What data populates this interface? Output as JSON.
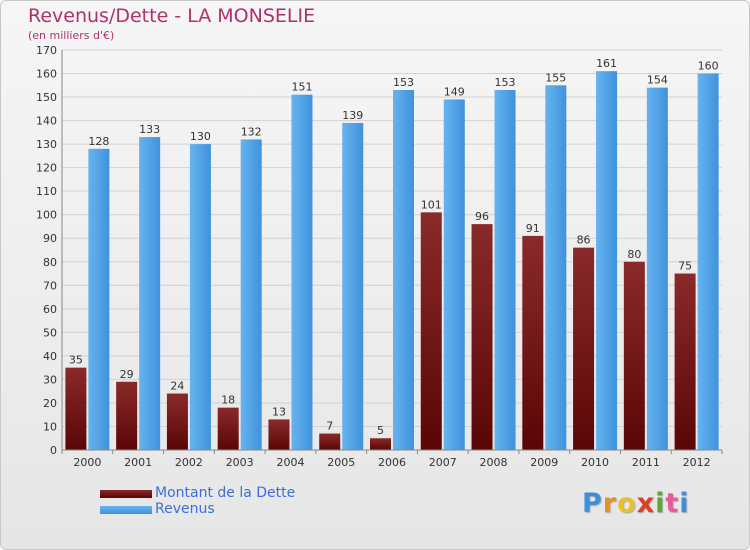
{
  "title": "Revenus/Dette - LA MONSELIE",
  "subtitle": "(en milliers d'€)",
  "logo": {
    "text": "Proxiti",
    "colors": [
      "#3f8fd8",
      "#e8902a",
      "#e8c12a",
      "#d8402a",
      "#5aa83a",
      "#e85a9a",
      "#3f8fd8"
    ]
  },
  "legend": [
    {
      "label": "Montant de la Dette",
      "color": "#6b0d0d"
    },
    {
      "label": "Revenus",
      "color": "#4a9fe3"
    }
  ],
  "chart_data": {
    "type": "bar",
    "categories": [
      "2000",
      "2001",
      "2002",
      "2003",
      "2004",
      "2005",
      "2006",
      "2007",
      "2008",
      "2009",
      "2010",
      "2011",
      "2012"
    ],
    "series": [
      {
        "name": "Montant de la Dette",
        "color": "#7a1a1a",
        "values": [
          35,
          29,
          24,
          18,
          13,
          7,
          5,
          101,
          96,
          91,
          86,
          80,
          75
        ]
      },
      {
        "name": "Revenus",
        "color": "#4a9fe3",
        "values": [
          128,
          133,
          130,
          132,
          151,
          139,
          153,
          149,
          153,
          155,
          161,
          154,
          160
        ]
      }
    ],
    "yticks": [
      "0",
      "10",
      "20",
      "30",
      "40",
      "50",
      "60",
      "70",
      "80",
      "90",
      "100",
      "110",
      "120",
      "130",
      "140",
      "150",
      "160",
      "170"
    ],
    "ylim": [
      0,
      170
    ],
    "grid": true
  }
}
